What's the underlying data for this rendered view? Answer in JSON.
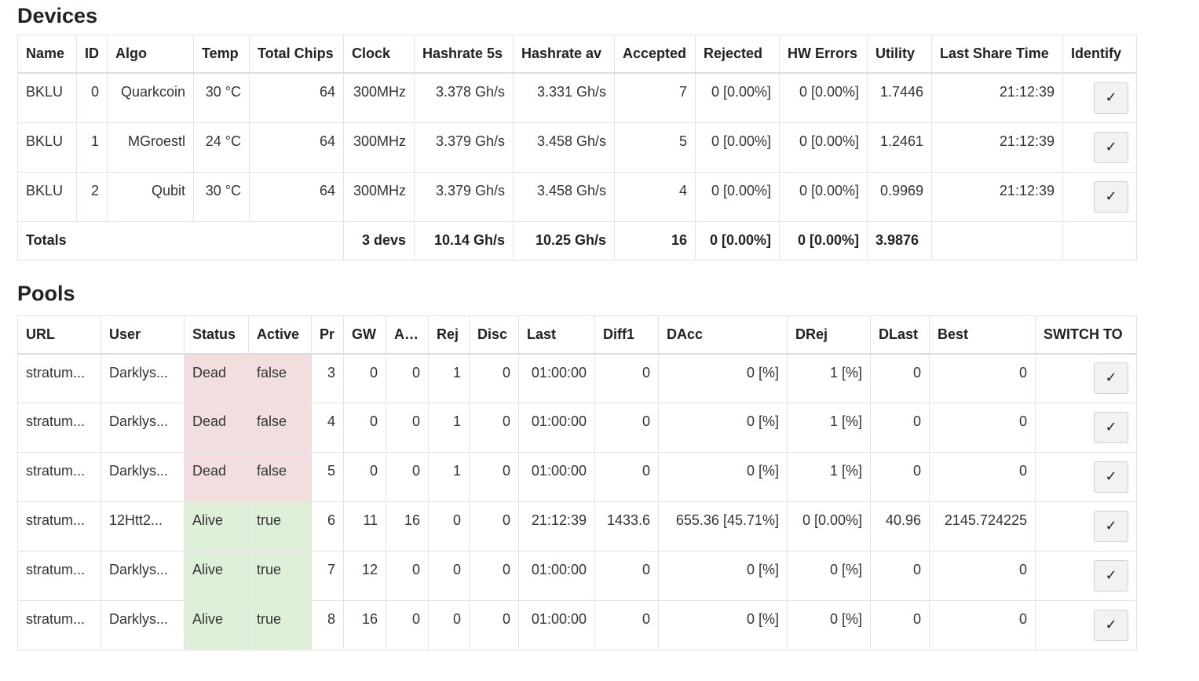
{
  "devices": {
    "title": "Devices",
    "columns": [
      "Name",
      "ID",
      "Algo",
      "Temp",
      "Total Chips",
      "Clock",
      "Hashrate 5s",
      "Hashrate av",
      "Accepted",
      "Rejected",
      "HW Errors",
      "Utility",
      "Last Share Time",
      "Identify"
    ],
    "rows": [
      {
        "name": "BKLU",
        "id": "0",
        "algo": "Quarkcoin",
        "temp": "30 °C",
        "chips": "64",
        "clock": "300MHz",
        "hr5s": "3.378 Gh/s",
        "hrav": "3.331 Gh/s",
        "accepted": "7",
        "rejected": "0 [0.00%]",
        "hwerrors": "0 [0.00%]",
        "utility": "1.7446",
        "lastshare": "21:12:39",
        "identify": "✓"
      },
      {
        "name": "BKLU",
        "id": "1",
        "algo": "MGroestl",
        "temp": "24 °C",
        "chips": "64",
        "clock": "300MHz",
        "hr5s": "3.379 Gh/s",
        "hrav": "3.458 Gh/s",
        "accepted": "5",
        "rejected": "0 [0.00%]",
        "hwerrors": "0 [0.00%]",
        "utility": "1.2461",
        "lastshare": "21:12:39",
        "identify": "✓"
      },
      {
        "name": "BKLU",
        "id": "2",
        "algo": "Qubit",
        "temp": "30 °C",
        "chips": "64",
        "clock": "300MHz",
        "hr5s": "3.379 Gh/s",
        "hrav": "3.458 Gh/s",
        "accepted": "4",
        "rejected": "0 [0.00%]",
        "hwerrors": "0 [0.00%]",
        "utility": "0.9969",
        "lastshare": "21:12:39",
        "identify": "✓"
      }
    ],
    "totals": {
      "label": "Totals",
      "devs": "3 devs",
      "hr5s": "10.14 Gh/s",
      "hrav": "10.25 Gh/s",
      "accepted": "16",
      "rejected": "0 [0.00%]",
      "hwerrors": "0 [0.00%]",
      "utility": "3.9876"
    }
  },
  "pools": {
    "title": "Pools",
    "columns": [
      "URL",
      "User",
      "Status",
      "Active",
      "Pr",
      "GW",
      "Acc",
      "Rej",
      "Disc",
      "Last",
      "Diff1",
      "DAcc",
      "DRej",
      "DLast",
      "Best",
      "SWITCH TO"
    ],
    "rows": [
      {
        "url": "stratum...",
        "user": "Darklys...",
        "status": "Dead",
        "active": "false",
        "pr": "3",
        "gw": "0",
        "acc": "0",
        "rej": "1",
        "disc": "0",
        "last": "01:00:00",
        "diff1": "0",
        "dacc": "0 [%]",
        "drej": "1 [%]",
        "dlast": "0",
        "best": "0",
        "switch": "✓"
      },
      {
        "url": "stratum...",
        "user": "Darklys...",
        "status": "Dead",
        "active": "false",
        "pr": "4",
        "gw": "0",
        "acc": "0",
        "rej": "1",
        "disc": "0",
        "last": "01:00:00",
        "diff1": "0",
        "dacc": "0 [%]",
        "drej": "1 [%]",
        "dlast": "0",
        "best": "0",
        "switch": "✓"
      },
      {
        "url": "stratum...",
        "user": "Darklys...",
        "status": "Dead",
        "active": "false",
        "pr": "5",
        "gw": "0",
        "acc": "0",
        "rej": "1",
        "disc": "0",
        "last": "01:00:00",
        "diff1": "0",
        "dacc": "0 [%]",
        "drej": "1 [%]",
        "dlast": "0",
        "best": "0",
        "switch": "✓"
      },
      {
        "url": "stratum...",
        "user": "12Htt2...",
        "status": "Alive",
        "active": "true",
        "pr": "6",
        "gw": "11",
        "acc": "16",
        "rej": "0",
        "disc": "0",
        "last": "21:12:39",
        "diff1": "1433.6",
        "dacc": "655.36 [45.71%]",
        "drej": "0 [0.00%]",
        "dlast": "40.96",
        "best": "2145.724225",
        "switch": "✓"
      },
      {
        "url": "stratum...",
        "user": "Darklys...",
        "status": "Alive",
        "active": "true",
        "pr": "7",
        "gw": "12",
        "acc": "0",
        "rej": "0",
        "disc": "0",
        "last": "01:00:00",
        "diff1": "0",
        "dacc": "0 [%]",
        "drej": "0 [%]",
        "dlast": "0",
        "best": "0",
        "switch": "✓"
      },
      {
        "url": "stratum...",
        "user": "Darklys...",
        "status": "Alive",
        "active": "true",
        "pr": "8",
        "gw": "16",
        "acc": "0",
        "rej": "0",
        "disc": "0",
        "last": "01:00:00",
        "diff1": "0",
        "dacc": "0 [%]",
        "drej": "0 [%]",
        "dlast": "0",
        "best": "0",
        "switch": "✓"
      }
    ]
  },
  "colors": {
    "dead_bg": "#f2dede",
    "alive_bg": "#dff0d8",
    "border": "#e4e4e4"
  }
}
